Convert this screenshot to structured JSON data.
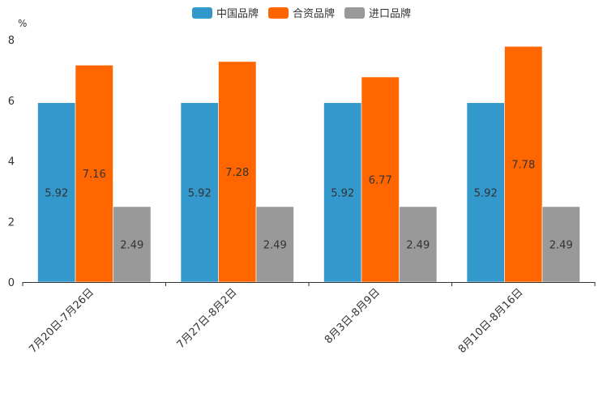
{
  "chart_data": {
    "type": "bar",
    "ylabel": "%",
    "ylim": [
      0,
      8
    ],
    "yticks": [
      0,
      2,
      4,
      6,
      8
    ],
    "categories": [
      "7月20日-7月26日",
      "7月27日-8月2日",
      "8月3日-8月9日",
      "8月10日-8月16日"
    ],
    "series": [
      {
        "name": "中国品牌",
        "color": "#3399cc",
        "values": [
          5.92,
          5.92,
          5.92,
          5.92
        ]
      },
      {
        "name": "合资品牌",
        "color": "#ff6600",
        "values": [
          7.16,
          7.28,
          6.77,
          7.78
        ]
      },
      {
        "name": "进口品牌",
        "color": "#999999",
        "values": [
          2.49,
          2.49,
          2.49,
          2.49
        ]
      }
    ],
    "legend_position": "top-center"
  }
}
